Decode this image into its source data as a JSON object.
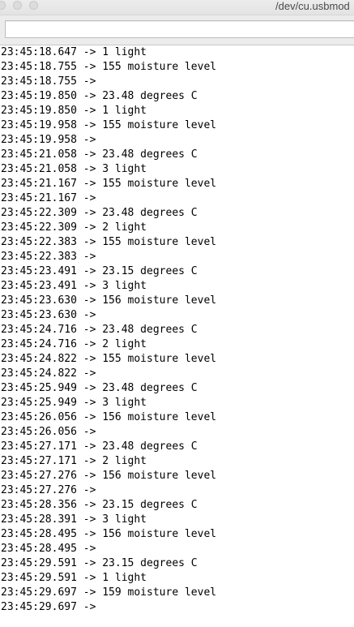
{
  "window": {
    "title": "/dev/cu.usbmod"
  },
  "toolbar": {
    "send_value": "",
    "send_placeholder": ""
  },
  "log": {
    "lines": [
      "23:45:18.647 -> 1 light",
      "23:45:18.755 -> 155 moisture level",
      "23:45:18.755 -> ",
      "23:45:19.850 -> 23.48 degrees C",
      "23:45:19.850 -> 1 light",
      "23:45:19.958 -> 155 moisture level",
      "23:45:19.958 -> ",
      "23:45:21.058 -> 23.48 degrees C",
      "23:45:21.058 -> 3 light",
      "23:45:21.167 -> 155 moisture level",
      "23:45:21.167 -> ",
      "23:45:22.309 -> 23.48 degrees C",
      "23:45:22.309 -> 2 light",
      "23:45:22.383 -> 155 moisture level",
      "23:45:22.383 -> ",
      "23:45:23.491 -> 23.15 degrees C",
      "23:45:23.491 -> 3 light",
      "23:45:23.630 -> 156 moisture level",
      "23:45:23.630 -> ",
      "23:45:24.716 -> 23.48 degrees C",
      "23:45:24.716 -> 2 light",
      "23:45:24.822 -> 155 moisture level",
      "23:45:24.822 -> ",
      "23:45:25.949 -> 23.48 degrees C",
      "23:45:25.949 -> 3 light",
      "23:45:26.056 -> 156 moisture level",
      "23:45:26.056 -> ",
      "23:45:27.171 -> 23.48 degrees C",
      "23:45:27.171 -> 2 light",
      "23:45:27.276 -> 156 moisture level",
      "23:45:27.276 -> ",
      "23:45:28.356 -> 23.15 degrees C",
      "23:45:28.391 -> 3 light",
      "23:45:28.495 -> 156 moisture level",
      "23:45:28.495 -> ",
      "23:45:29.591 -> 23.15 degrees C",
      "23:45:29.591 -> 1 light",
      "23:45:29.697 -> 159 moisture level",
      "23:45:29.697 -> "
    ]
  }
}
